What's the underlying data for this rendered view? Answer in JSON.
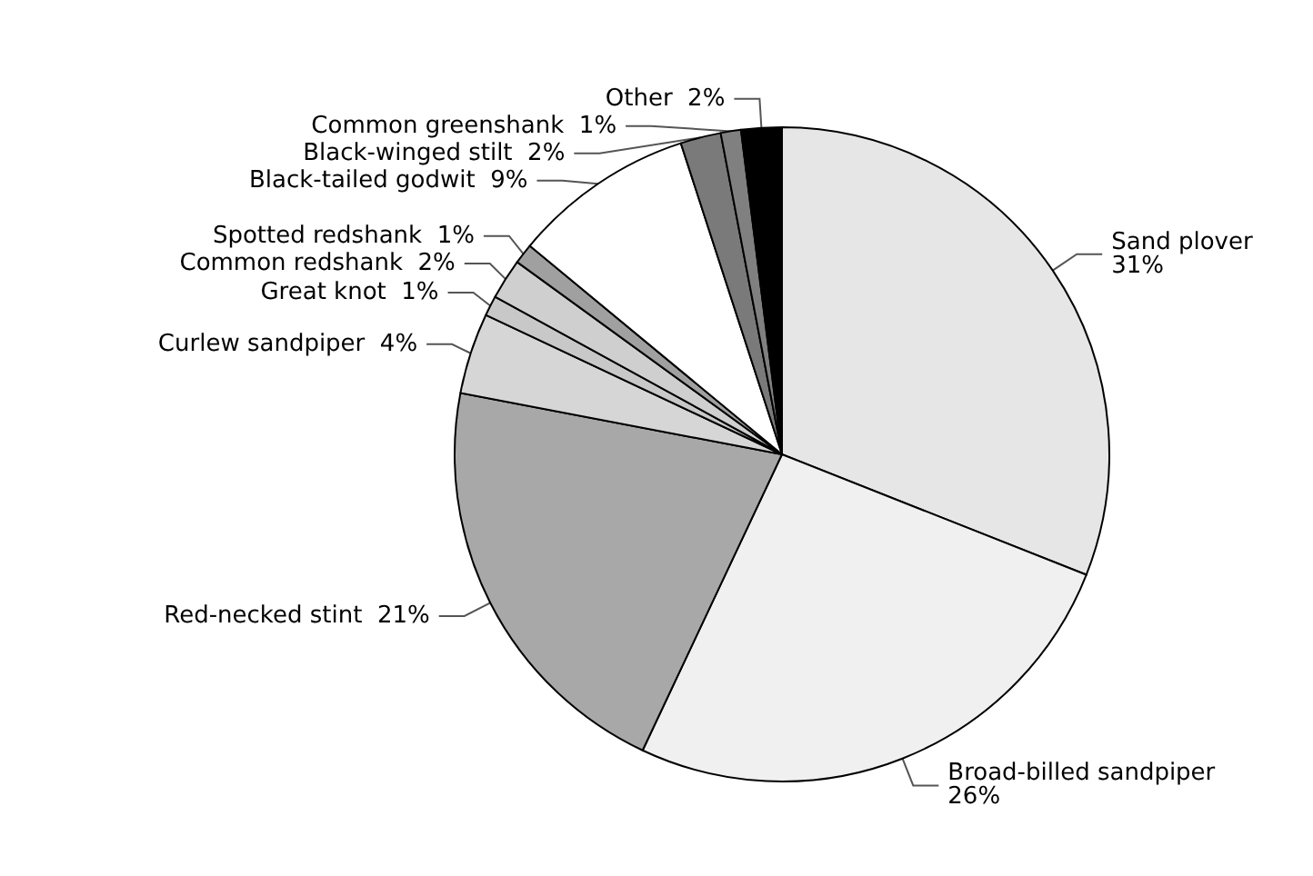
{
  "chart_data": {
    "type": "pie",
    "categories": [
      "Sand plover",
      "Broad-billed sandpiper",
      "Red-necked stint",
      "Curlew sandpiper",
      "Great knot",
      "Common redshank",
      "Spotted redshank",
      "Black-tailed godwit",
      "Black-winged stilt",
      "Common greenshank",
      "Other"
    ],
    "values": [
      31,
      26,
      21,
      4,
      1,
      2,
      1,
      9,
      2,
      1,
      2
    ],
    "value_labels": [
      "31%",
      "26%",
      "21%",
      "4%",
      "1%",
      "2%",
      "1%",
      "9%",
      "2%",
      "1%",
      "2%"
    ],
    "colors": [
      "#e6e6e6",
      "#f0f0f0",
      "#a8a8a8",
      "#d6d6d6",
      "#c8c8c8",
      "#cfcfcf",
      "#a0a0a0",
      "#ffffff",
      "#7a7a7a",
      "#808080",
      "#000000"
    ],
    "legend": false
  }
}
